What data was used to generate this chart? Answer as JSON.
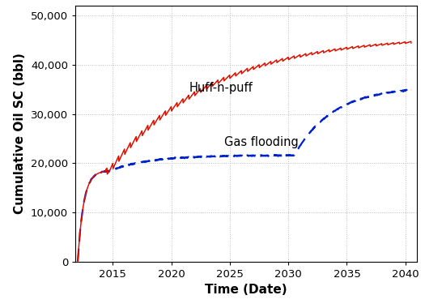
{
  "title": "",
  "xlabel": "Time (Date)",
  "ylabel": "Cumulative Oil SC (bbl)",
  "xlim": [
    2011.8,
    2041.0
  ],
  "ylim": [
    0,
    52000
  ],
  "yticks": [
    0,
    10000,
    20000,
    30000,
    40000,
    50000
  ],
  "xticks": [
    2015,
    2020,
    2025,
    2030,
    2035,
    2040
  ],
  "grid_color": "#bbbbbb",
  "huff_color": "#dd1100",
  "gas_color": "#0022cc",
  "huff_label": "Huff-n-puff",
  "gas_label": "Gas flooding",
  "annotation_fontsize": 10.5,
  "label_fontsize": 11,
  "tick_fontsize": 9.5,
  "background_color": "#ffffff",
  "t_start": 2012.0,
  "t_end": 2040.5,
  "t_diverge": 2014.7,
  "early_asymptote": 18500,
  "early_rate": 2.0,
  "huff_late_add": 27500,
  "huff_late_rate": 0.115,
  "gas_plateau_add": 3200,
  "gas_plateau_rate": 0.3,
  "gas_rise2_start": 2030.5,
  "gas_rise2_add": 14000,
  "gas_rise2_rate": 0.3,
  "huff_step_amplitude": 700,
  "huff_step_period": 0.5,
  "huff_step_decay": 0.055
}
